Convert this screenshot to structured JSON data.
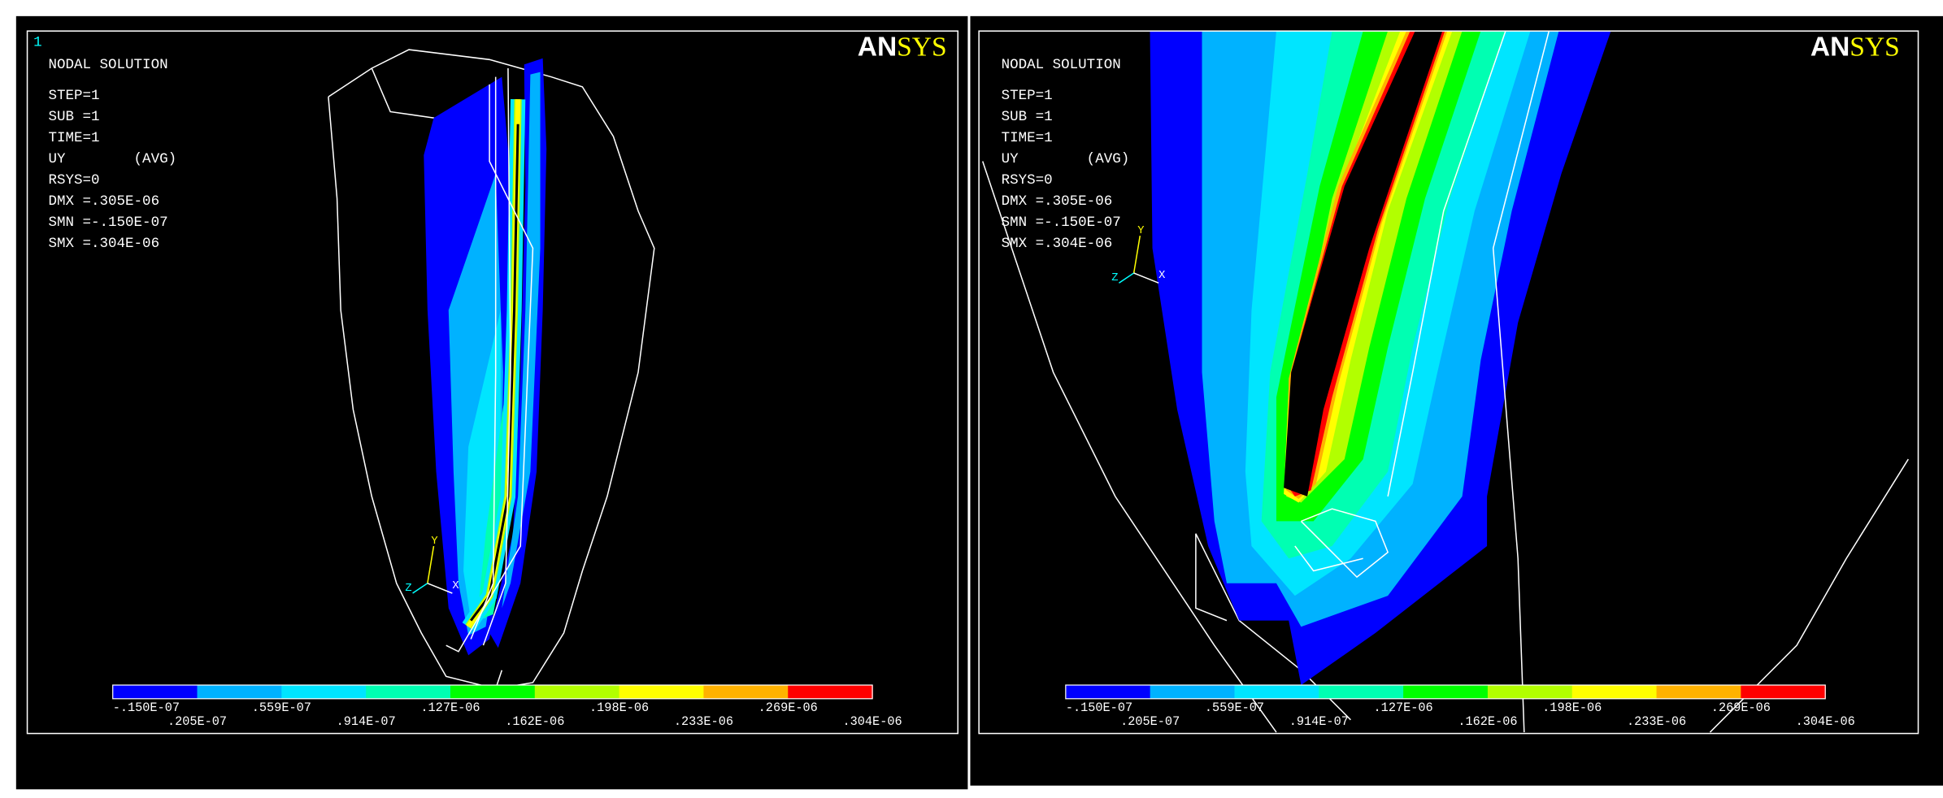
{
  "panels": [
    {
      "window_number": "1",
      "logo": {
        "an": "AN",
        "sys": "SYS"
      },
      "info": [
        "NODAL SOLUTION",
        "STEP=1",
        "SUB =1",
        "TIME=1",
        "UY        (AVG)",
        "RSYS=0",
        "DMX =.305E-06",
        "SMN =-.150E-07",
        "SMX =.304E-06"
      ],
      "triad": [
        "Y",
        "Z",
        "X"
      ],
      "legend": {
        "colors": [
          "#0000ff",
          "#00b2ff",
          "#00e5ff",
          "#00ffb2",
          "#00ff00",
          "#b2ff00",
          "#ffff00",
          "#ffb200",
          "#ff0000"
        ],
        "labels": [
          "-.150E-07",
          ".205E-07",
          ".559E-07",
          ".914E-07",
          ".127E-06",
          ".162E-06",
          ".198E-06",
          ".233E-06",
          ".269E-06",
          ".304E-06"
        ]
      }
    },
    {
      "logo": {
        "an": "AN",
        "sys": "SYS"
      },
      "info": [
        "NODAL SOLUTION",
        "STEP=1",
        "SUB =1",
        "TIME=1",
        "UY        (AVG)",
        "RSYS=0",
        "DMX =.305E-06",
        "SMN =-.150E-07",
        "SMX =.304E-06"
      ],
      "triad": [
        "Y",
        "Z",
        "X"
      ],
      "legend": {
        "colors": [
          "#0000ff",
          "#00b2ff",
          "#00e5ff",
          "#00ffb2",
          "#00ff00",
          "#b2ff00",
          "#ffff00",
          "#ffb200",
          "#ff0000"
        ],
        "labels": [
          "-.150E-07",
          ".205E-07",
          ".559E-07",
          ".914E-07",
          ".127E-06",
          ".162E-06",
          ".198E-06",
          ".233E-06",
          ".269E-06",
          ".304E-06"
        ]
      }
    }
  ]
}
